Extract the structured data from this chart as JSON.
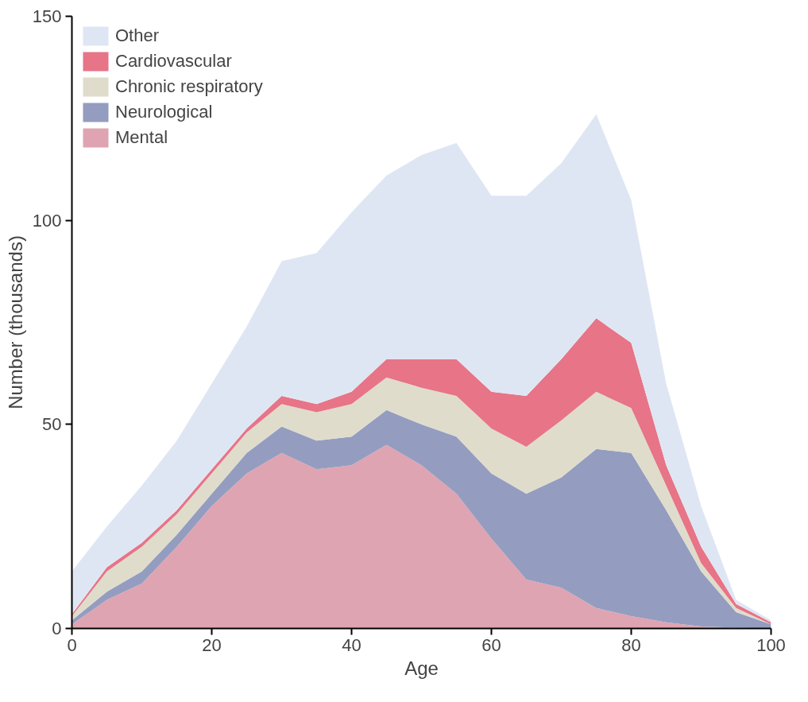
{
  "chart_data": {
    "type": "area",
    "stacked": true,
    "xlabel": "Age",
    "ylabel": "Number (thousands)",
    "x": [
      0,
      5,
      10,
      15,
      20,
      25,
      30,
      35,
      40,
      45,
      50,
      55,
      60,
      65,
      70,
      75,
      80,
      85,
      90,
      95,
      100
    ],
    "xlim": [
      0,
      100
    ],
    "xticks": [
      0,
      20,
      40,
      60,
      80,
      100
    ],
    "ylim": [
      0,
      150
    ],
    "yticks": [
      0,
      50,
      100,
      150
    ],
    "grid": false,
    "legend": "top left",
    "series": [
      {
        "name": "Mental",
        "color": "#dfa4b1",
        "values": [
          1,
          7,
          11,
          20,
          30,
          38,
          43,
          39,
          40,
          45,
          40,
          33,
          22,
          12,
          10,
          5,
          3,
          1.5,
          0.5,
          0.2,
          0
        ]
      },
      {
        "name": "Neurological",
        "color": "#949dc0",
        "values": [
          1,
          2,
          3,
          3,
          3,
          5,
          6.5,
          7,
          7,
          8.5,
          10,
          14,
          16,
          21,
          27,
          39,
          40,
          27.5,
          13.5,
          3.8,
          1
        ]
      },
      {
        "name": "Chronic respiratory",
        "color": "#dfdccb",
        "values": [
          1,
          5,
          6,
          5,
          5,
          5,
          5.5,
          7,
          8,
          8,
          9,
          10,
          11,
          11.5,
          14,
          14,
          11,
          6,
          2,
          1,
          0
        ]
      },
      {
        "name": "Cardiovascular",
        "color": "#e77487",
        "values": [
          0.5,
          1,
          1,
          1,
          1,
          1,
          2,
          2,
          3,
          4.5,
          7,
          9,
          9,
          12.5,
          15,
          18,
          16,
          5,
          4,
          1,
          0.5
        ]
      },
      {
        "name": "Other",
        "color": "#dfe6f3",
        "values": [
          10.5,
          10,
          14,
          17,
          21,
          25,
          33,
          37,
          44,
          45,
          50,
          53,
          48,
          49,
          48,
          50,
          35,
          20,
          10,
          1,
          0.5
        ]
      }
    ]
  }
}
